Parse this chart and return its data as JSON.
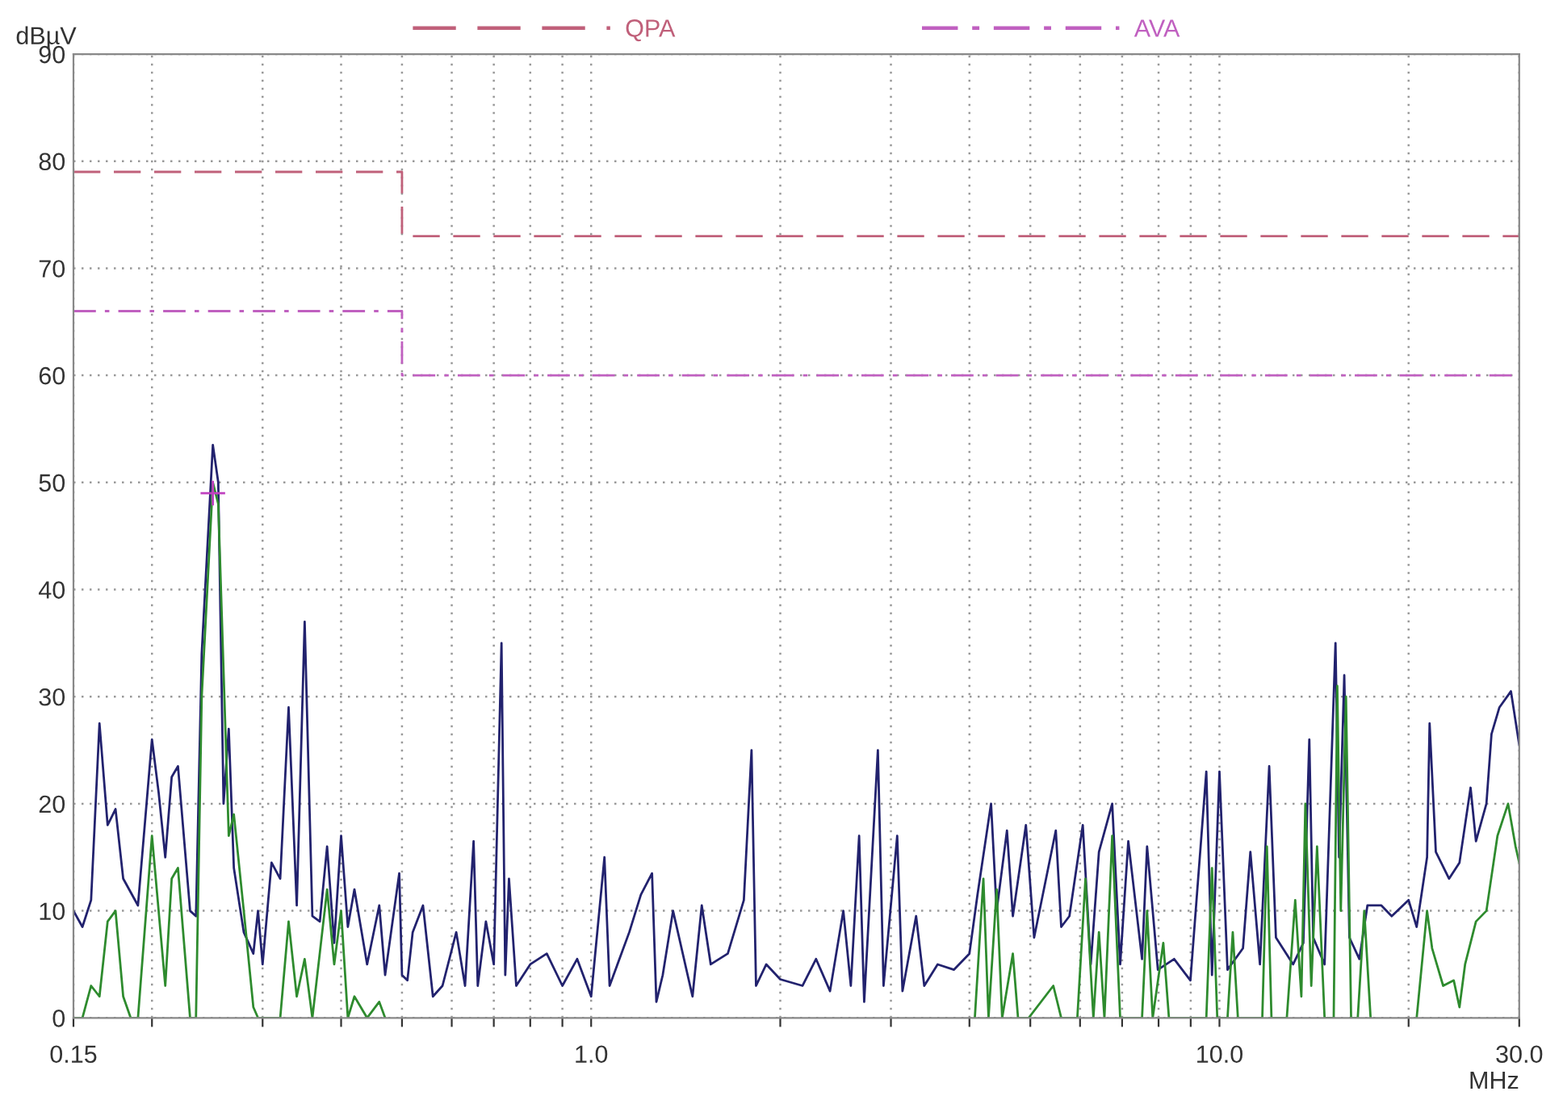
{
  "chart_data": {
    "type": "line",
    "xlabel": "MHz",
    "ylabel": "dBµV",
    "log": "x",
    "grid": true,
    "legend": "top",
    "xlim": [
      0.15,
      30
    ],
    "ylim": [
      0,
      90
    ],
    "yticks": [
      0,
      10,
      20,
      30,
      40,
      50,
      60,
      70,
      80,
      90
    ],
    "xticks": [
      {
        "value": 0.15,
        "label": "0.15"
      },
      {
        "value": 0.2,
        "label": null
      },
      {
        "value": 0.3,
        "label": null
      },
      {
        "value": 0.4,
        "label": null
      },
      {
        "value": 0.5,
        "label": null
      },
      {
        "value": 0.6,
        "label": null
      },
      {
        "value": 0.7,
        "label": null
      },
      {
        "value": 0.8,
        "label": null
      },
      {
        "value": 0.9,
        "label": null
      },
      {
        "value": 1,
        "label": "1.0"
      },
      {
        "value": 2,
        "label": null
      },
      {
        "value": 3,
        "label": null
      },
      {
        "value": 4,
        "label": null
      },
      {
        "value": 5,
        "label": null
      },
      {
        "value": 6,
        "label": null
      },
      {
        "value": 7,
        "label": null
      },
      {
        "value": 8,
        "label": null
      },
      {
        "value": 9,
        "label": null
      },
      {
        "value": 10,
        "label": "10.0"
      },
      {
        "value": 20,
        "label": null
      },
      {
        "value": 30,
        "label": "30.0"
      }
    ],
    "series": [
      {
        "name": "QPA",
        "type": "step",
        "color": "#c0607a",
        "line_style": "dashed",
        "x": [
          0.15,
          0.5,
          30
        ],
        "values": [
          79,
          73,
          73
        ]
      },
      {
        "name": "AVA",
        "type": "step",
        "color": "#c060c0",
        "line_style": "dashdot",
        "x": [
          0.15,
          0.5,
          30
        ],
        "values": [
          66,
          60,
          60
        ]
      },
      {
        "color": "#22226e",
        "line_style": "solid",
        "x": [
          0.15,
          0.155,
          0.16,
          0.165,
          0.17,
          0.175,
          0.18,
          0.19,
          0.2,
          0.205,
          0.21,
          0.215,
          0.22,
          0.23,
          0.235,
          0.24,
          0.25,
          0.255,
          0.26,
          0.265,
          0.27,
          0.28,
          0.29,
          0.295,
          0.3,
          0.31,
          0.32,
          0.33,
          0.34,
          0.35,
          0.36,
          0.37,
          0.38,
          0.39,
          0.4,
          0.41,
          0.42,
          0.44,
          0.46,
          0.47,
          0.495,
          0.5,
          0.51,
          0.52,
          0.54,
          0.56,
          0.58,
          0.61,
          0.63,
          0.65,
          0.66,
          0.68,
          0.7,
          0.72,
          0.73,
          0.74,
          0.76,
          0.8,
          0.85,
          0.9,
          0.95,
          1.0,
          1.05,
          1.07,
          1.15,
          1.2,
          1.25,
          1.27,
          1.3,
          1.35,
          1.45,
          1.5,
          1.55,
          1.65,
          1.75,
          1.8,
          1.83,
          1.9,
          2.0,
          2.17,
          2.28,
          2.4,
          2.52,
          2.59,
          2.67,
          2.72,
          2.86,
          2.92,
          3.07,
          3.13,
          3.29,
          3.39,
          3.56,
          3.78,
          4.0,
          4.12,
          4.33,
          4.42,
          4.59,
          4.69,
          4.92,
          5.07,
          5.49,
          5.6,
          5.77,
          6.06,
          6.24,
          6.43,
          6.75,
          6.95,
          7.16,
          7.53,
          7.67,
          7.98,
          8.47,
          8.99,
          9.53,
          9.73,
          10.0,
          10.3,
          10.9,
          11.2,
          11.6,
          12.0,
          12.3,
          13.1,
          13.6,
          13.9,
          14.1,
          14.7,
          15.3,
          15.5,
          15.8,
          16.1,
          16.7,
          17.2,
          18.1,
          18.8,
          20.0,
          20.6,
          21.4,
          21.6,
          22.1,
          23.2,
          24.1,
          25.1,
          25.6,
          26.6,
          27.1,
          27.9,
          29.1,
          30.0
        ],
        "values": [
          10,
          8.5,
          11,
          27.5,
          18,
          19.5,
          13,
          10.5,
          26,
          21,
          15,
          22.5,
          23.5,
          10,
          9.5,
          34,
          53.5,
          50,
          20,
          27,
          14,
          8,
          6,
          10,
          5,
          14.5,
          13,
          29,
          10.5,
          37,
          9.5,
          9,
          16,
          7,
          17,
          8.5,
          12,
          5,
          10.5,
          4,
          13.5,
          4,
          3.5,
          8,
          10.5,
          2,
          3,
          8,
          3,
          16.5,
          3,
          9,
          5,
          35,
          4,
          13,
          3,
          5,
          6,
          3,
          5.5,
          2,
          15,
          3,
          8,
          11.5,
          13.5,
          1.5,
          4,
          10,
          2,
          10.5,
          5,
          6,
          11,
          25,
          3,
          5,
          3.6,
          3,
          5.5,
          2.5,
          10,
          3,
          17,
          1.5,
          25,
          3,
          17,
          2.5,
          9.5,
          3,
          5,
          4.5,
          6,
          11.5,
          20,
          10,
          17.5,
          9.5,
          18,
          7.5,
          17.5,
          8.5,
          9.5,
          18,
          5,
          15.5,
          20,
          5,
          16.5,
          5.5,
          16,
          4.5,
          5.5,
          3.5,
          23,
          4,
          23,
          4.5,
          6.5,
          15.5,
          5,
          23.5,
          7.5,
          5,
          7,
          26,
          7.5,
          5,
          35,
          15,
          32,
          7.5,
          5.5,
          10.5,
          10.5,
          9.5,
          11,
          8.5,
          15,
          27.5,
          15.5,
          13,
          14.5,
          21.5,
          16.5,
          20,
          26.5,
          29,
          30.5,
          25.5
        ]
      },
      {
        "color": "#2e8b2e",
        "line_style": "solid",
        "x": [
          0.15,
          0.155,
          0.16,
          0.165,
          0.17,
          0.175,
          0.18,
          0.185,
          0.19,
          0.2,
          0.21,
          0.215,
          0.22,
          0.23,
          0.235,
          0.24,
          0.25,
          0.255,
          0.265,
          0.27,
          0.28,
          0.29,
          0.295,
          0.32,
          0.33,
          0.34,
          0.35,
          0.36,
          0.38,
          0.39,
          0.4,
          0.41,
          0.42,
          0.44,
          0.46,
          0.47,
          1.0,
          4.08,
          4.21,
          4.29,
          4.42,
          4.51,
          4.69,
          4.78,
          4.97,
          5.44,
          5.6,
          5.94,
          6.12,
          6.3,
          6.43,
          6.56,
          6.75,
          6.95,
          7.53,
          7.67,
          7.83,
          8.14,
          8.31,
          9.53,
          9.73,
          9.92,
          10.3,
          10.5,
          10.7,
          11.7,
          11.9,
          12.1,
          12.8,
          13.2,
          13.5,
          13.7,
          14.0,
          14.3,
          14.7,
          15.2,
          15.4,
          15.6,
          15.9,
          16.2,
          16.6,
          17.0,
          17.4,
          19.0,
          20.6,
          21.4,
          21.8,
          22.7,
          23.6,
          24.1,
          24.6,
          25.6,
          26.6,
          27.7,
          28.8,
          29.6,
          30.0
        ],
        "values": [
          0,
          0,
          3,
          2,
          9,
          10,
          2,
          0,
          0,
          17,
          3,
          13,
          14,
          0,
          0,
          30,
          50,
          48,
          17,
          19,
          10,
          1,
          0,
          0,
          9,
          2,
          5.5,
          0,
          12,
          5,
          10,
          0,
          2,
          0,
          1.5,
          0,
          null,
          0,
          13,
          0,
          12,
          0,
          6,
          0,
          0,
          3,
          0,
          0,
          13,
          0,
          8,
          0,
          17,
          0,
          0,
          10,
          0,
          7,
          0,
          0,
          14,
          0,
          0,
          8,
          0,
          0,
          16,
          0,
          0,
          11,
          2,
          20,
          3,
          16,
          0,
          0,
          31,
          10,
          30,
          0,
          0,
          10,
          0,
          null,
          0,
          10,
          6.5,
          3,
          3.5,
          1,
          5,
          9,
          10,
          17,
          20,
          16,
          14.5
        ]
      },
      {
        "type": "scatter",
        "color": "#c040c0",
        "marker": "cross",
        "x": [
          0.25
        ],
        "values": [
          49
        ]
      }
    ]
  }
}
